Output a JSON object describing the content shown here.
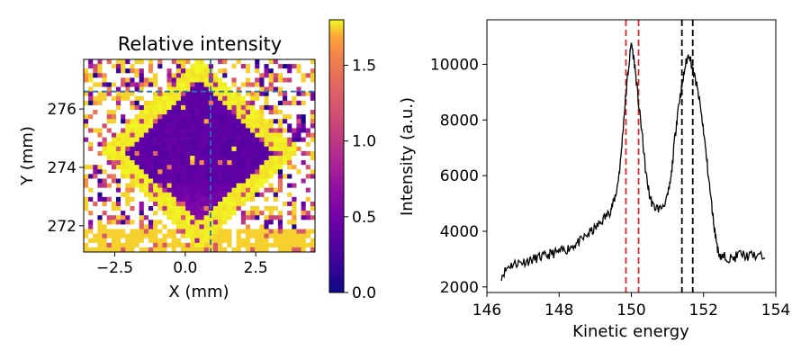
{
  "chart_data": [
    {
      "type": "heatmap",
      "title": "Relative intensity",
      "xlabel": "X (mm)",
      "ylabel": "Y (mm)",
      "xlim": [
        -3.6,
        4.6
      ],
      "ylim": [
        277.7,
        271.1
      ],
      "x_ticks": [
        -2.5,
        0.0,
        2.5
      ],
      "x_tick_labels": [
        "−2.5",
        "0.0",
        "2.5"
      ],
      "y_ticks": [
        272,
        274,
        276
      ],
      "y_tick_labels": [
        "272",
        "274",
        "276"
      ],
      "grid": false,
      "colormap": "plasma",
      "colorbar": {
        "range": [
          0.0,
          1.8
        ],
        "ticks": [
          0.0,
          0.5,
          1.0,
          1.5
        ],
        "tick_labels": [
          "0.0",
          "0.5",
          "1.0",
          "1.5"
        ]
      },
      "crosshair": {
        "x": 0.9,
        "y": 276.6,
        "color": "#1f77b4",
        "style": "dashed"
      },
      "description_regions": {
        "background_level": 0.3,
        "saturated_ring_level": 1.8,
        "missing_value_color": "#ffffff"
      }
    },
    {
      "type": "line",
      "xlabel": "Kinetic energy",
      "ylabel": "Intensity (a.u.)",
      "xlim": [
        146.0,
        154.0
      ],
      "ylim": [
        1800,
        11600
      ],
      "x_ticks": [
        146,
        148,
        150,
        152,
        154
      ],
      "x_tick_labels": [
        "146",
        "148",
        "150",
        "152",
        "154"
      ],
      "y_ticks": [
        2000,
        4000,
        6000,
        8000,
        10000
      ],
      "y_tick_labels": [
        "2000",
        "4000",
        "6000",
        "8000",
        "10000"
      ],
      "grid": false,
      "series": [
        {
          "color": "#000000",
          "x": [
            146.4,
            146.6,
            146.8,
            147.0,
            147.2,
            147.4,
            147.6,
            147.8,
            148.0,
            148.2,
            148.4,
            148.6,
            148.8,
            149.0,
            149.2,
            149.4,
            149.5,
            149.6,
            149.7,
            149.8,
            149.9,
            150.0,
            150.1,
            150.2,
            150.3,
            150.4,
            150.5,
            150.6,
            150.8,
            151.0,
            151.1,
            151.2,
            151.3,
            151.4,
            151.5,
            151.6,
            151.7,
            151.8,
            151.9,
            152.0,
            152.1,
            152.2,
            152.3,
            152.4,
            152.5,
            152.6,
            152.8,
            153.0,
            153.2,
            153.4,
            153.7
          ],
          "y": [
            2400,
            2750,
            2850,
            2900,
            2950,
            3050,
            3100,
            3200,
            3250,
            3350,
            3500,
            3650,
            3900,
            4100,
            4400,
            4700,
            5000,
            5500,
            6500,
            8200,
            9600,
            10800,
            9900,
            8600,
            7500,
            6100,
            5300,
            4900,
            4800,
            5200,
            5900,
            7300,
            8500,
            9200,
            10000,
            10400,
            9800,
            9300,
            8600,
            7600,
            6400,
            5200,
            4100,
            3300,
            3050,
            3100,
            3000,
            3200,
            3100,
            3150,
            3050
          ]
        }
      ],
      "vlines": [
        {
          "x": 149.85,
          "color": "#d62728"
        },
        {
          "x": 150.2,
          "color": "#d62728"
        },
        {
          "x": 151.4,
          "color": "#000000"
        },
        {
          "x": 151.7,
          "color": "#000000"
        }
      ]
    }
  ]
}
